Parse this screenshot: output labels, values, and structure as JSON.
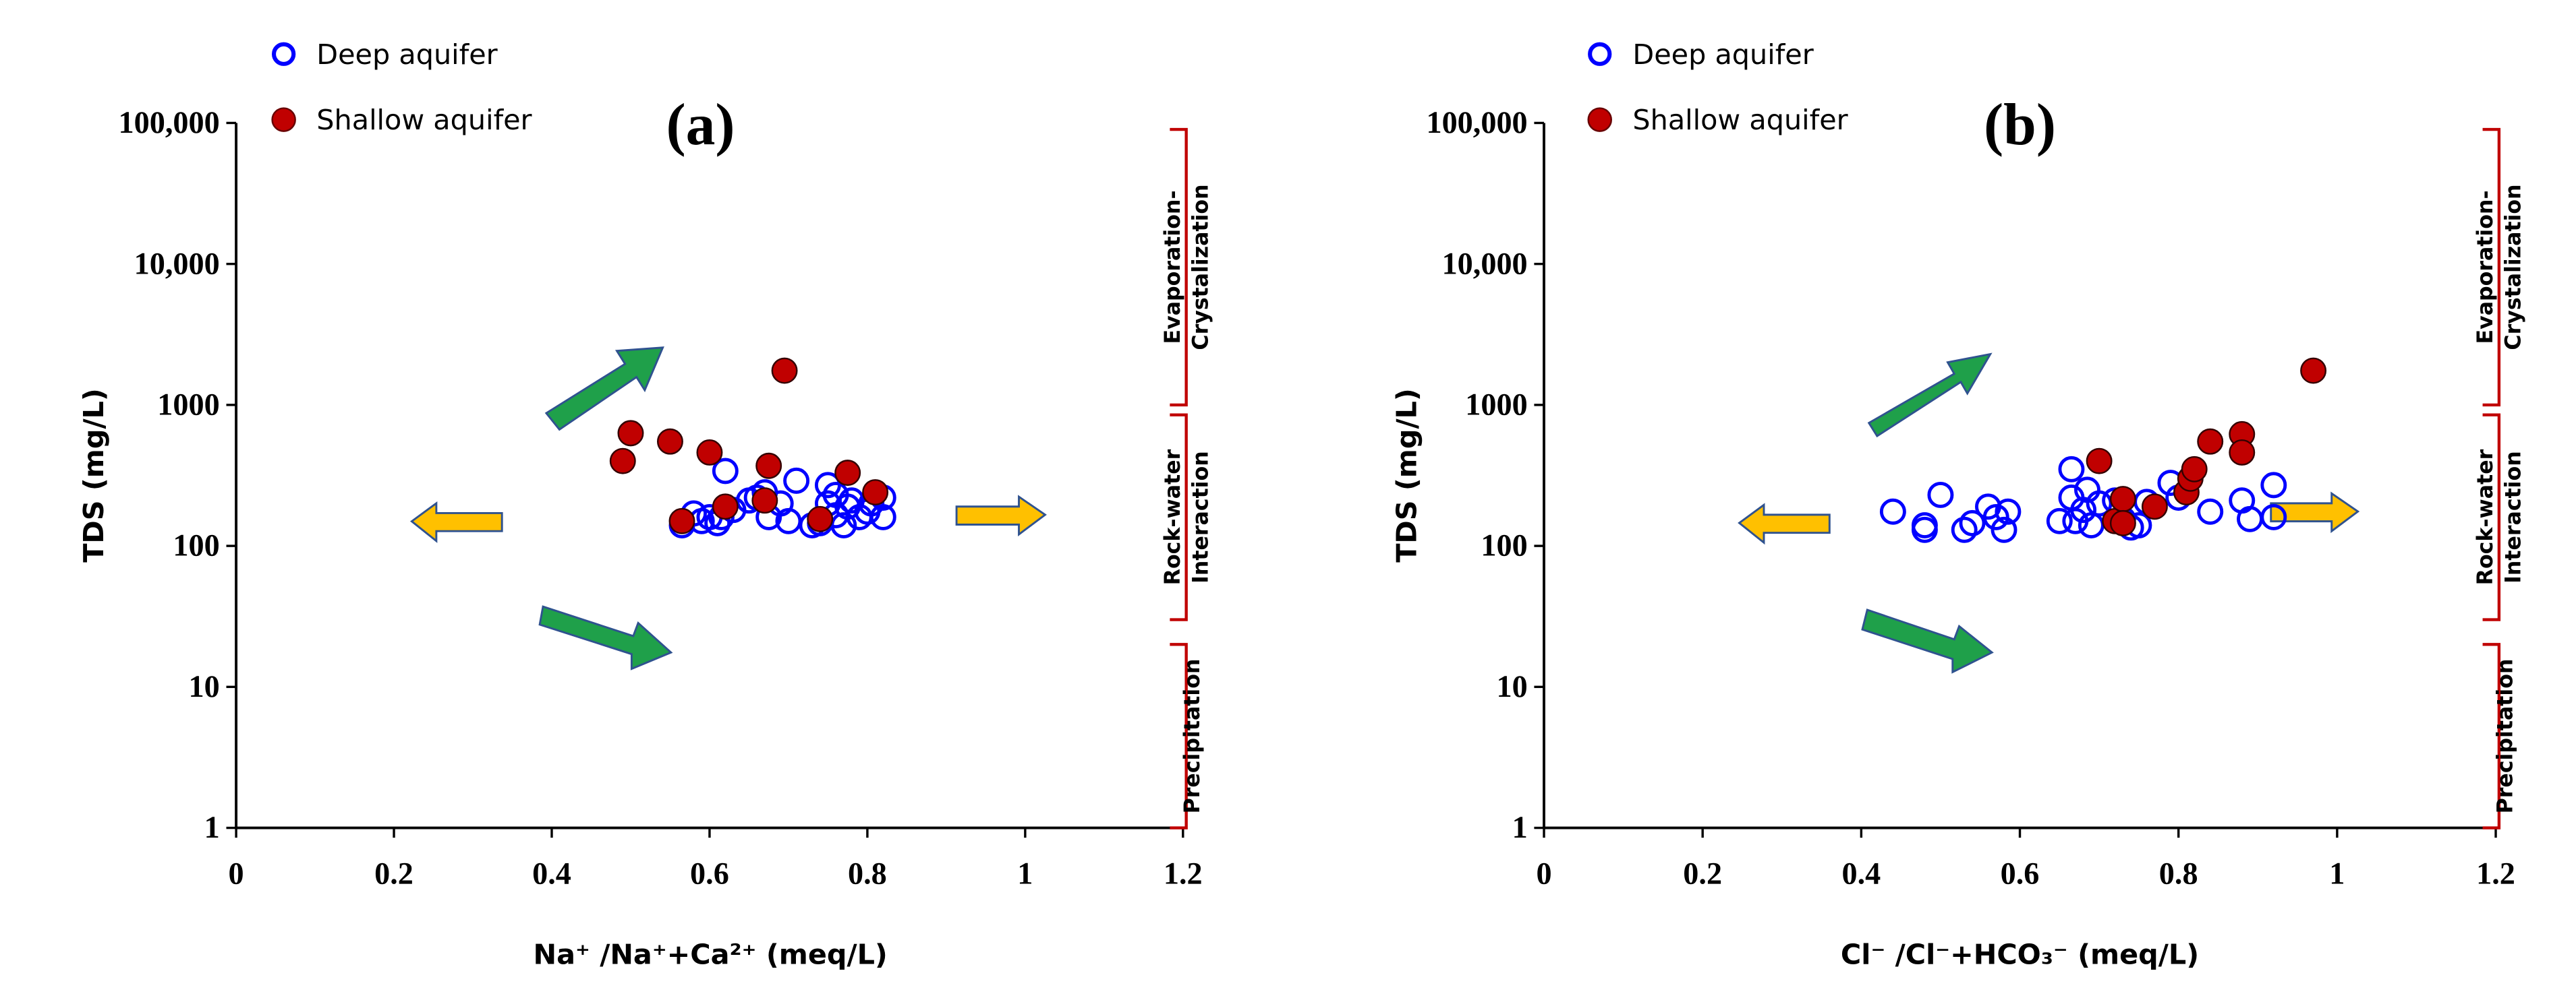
{
  "chart_data": [
    {
      "type": "scatter",
      "panel_label": "(a)",
      "xlabel": "Na⁺ /Na⁺+Ca²⁺ (meq/L)",
      "ylabel": "TDS (mg/L)",
      "xlim": [
        0,
        1.2
      ],
      "ylim": [
        1,
        100000
      ],
      "yscale": "log",
      "xticks": [
        "0",
        "0.2",
        "0.4",
        "0.6",
        "0.8",
        "1",
        "1.2"
      ],
      "yticks": [
        "1",
        "10",
        "100",
        "1000",
        "10,000",
        "100,000"
      ],
      "legend": {
        "placement": "top-left",
        "entries": [
          "Deep aquifer",
          "Shallow aquifer"
        ]
      },
      "zones": [
        {
          "label_lines": [
            "Evaporation-",
            "Crystalization"
          ],
          "range": [
            1000,
            90000
          ]
        },
        {
          "label_lines": [
            "Rock-water",
            "Interaction"
          ],
          "range": [
            30,
            850
          ]
        },
        {
          "label_lines": [
            "Precipitation"
          ],
          "range": [
            1,
            20
          ]
        }
      ],
      "series": [
        {
          "name": "Deep aquifer",
          "color": "#0000ff",
          "marker": "open-circle",
          "points": [
            [
              0.565,
              140
            ],
            [
              0.58,
              170
            ],
            [
              0.59,
              150
            ],
            [
              0.6,
              160
            ],
            [
              0.61,
              145
            ],
            [
              0.615,
              160
            ],
            [
              0.62,
              340
            ],
            [
              0.63,
              180
            ],
            [
              0.65,
              210
            ],
            [
              0.66,
              220
            ],
            [
              0.67,
              240
            ],
            [
              0.675,
              160
            ],
            [
              0.69,
              200
            ],
            [
              0.7,
              150
            ],
            [
              0.71,
              290
            ],
            [
              0.73,
              140
            ],
            [
              0.74,
              145
            ],
            [
              0.75,
              200
            ],
            [
              0.75,
              270
            ],
            [
              0.76,
              230
            ],
            [
              0.76,
              165
            ],
            [
              0.77,
              140
            ],
            [
              0.775,
              190
            ],
            [
              0.78,
              210
            ],
            [
              0.79,
              160
            ],
            [
              0.8,
              175
            ],
            [
              0.805,
              200
            ],
            [
              0.82,
              220
            ],
            [
              0.82,
              160
            ]
          ]
        },
        {
          "name": "Shallow aquifer",
          "color": "#c00000",
          "marker": "filled-circle",
          "points": [
            [
              0.49,
              400
            ],
            [
              0.5,
              630
            ],
            [
              0.55,
              550
            ],
            [
              0.6,
              460
            ],
            [
              0.62,
              190
            ],
            [
              0.565,
              150
            ],
            [
              0.67,
              210
            ],
            [
              0.675,
              370
            ],
            [
              0.695,
              1750
            ],
            [
              0.74,
              155
            ],
            [
              0.775,
              330
            ],
            [
              0.81,
              240
            ]
          ]
        }
      ]
    },
    {
      "type": "scatter",
      "panel_label": "(b)",
      "xlabel": "Cl⁻ /Cl⁻+HCO₃⁻ (meq/L)",
      "ylabel": "TDS (mg/L)",
      "xlim": [
        0,
        1.2
      ],
      "ylim": [
        1,
        100000
      ],
      "yscale": "log",
      "xticks": [
        "0",
        "0.2",
        "0.4",
        "0.6",
        "0.8",
        "1",
        "1.2"
      ],
      "yticks": [
        "1",
        "10",
        "100",
        "1000",
        "10,000",
        "100,000"
      ],
      "legend": {
        "placement": "top-left",
        "entries": [
          "Deep aquifer",
          "Shallow aquifer"
        ]
      },
      "zones": [
        {
          "label_lines": [
            "Evaporation-",
            "Crystalization"
          ],
          "range": [
            1000,
            90000
          ]
        },
        {
          "label_lines": [
            "Rock-water",
            "Interaction"
          ],
          "range": [
            30,
            850
          ]
        },
        {
          "label_lines": [
            "Precipitation"
          ],
          "range": [
            1,
            20
          ]
        }
      ],
      "series": [
        {
          "name": "Deep aquifer",
          "color": "#0000ff",
          "marker": "open-circle",
          "points": [
            [
              0.44,
              175
            ],
            [
              0.48,
              140
            ],
            [
              0.48,
              130
            ],
            [
              0.5,
              230
            ],
            [
              0.53,
              130
            ],
            [
              0.54,
              145
            ],
            [
              0.56,
              190
            ],
            [
              0.57,
              160
            ],
            [
              0.58,
              130
            ],
            [
              0.585,
              175
            ],
            [
              0.65,
              150
            ],
            [
              0.665,
              350
            ],
            [
              0.665,
              220
            ],
            [
              0.67,
              150
            ],
            [
              0.68,
              180
            ],
            [
              0.685,
              250
            ],
            [
              0.69,
              140
            ],
            [
              0.7,
              200
            ],
            [
              0.72,
              210
            ],
            [
              0.73,
              155
            ],
            [
              0.74,
              135
            ],
            [
              0.75,
              140
            ],
            [
              0.76,
              205
            ],
            [
              0.79,
              280
            ],
            [
              0.8,
              220
            ],
            [
              0.84,
              175
            ],
            [
              0.88,
              210
            ],
            [
              0.89,
              155
            ],
            [
              0.92,
              270
            ],
            [
              0.92,
              160
            ]
          ]
        },
        {
          "name": "Shallow aquifer",
          "color": "#c00000",
          "marker": "filled-circle",
          "points": [
            [
              0.7,
              400
            ],
            [
              0.72,
              150
            ],
            [
              0.73,
              215
            ],
            [
              0.73,
              145
            ],
            [
              0.77,
              190
            ],
            [
              0.81,
              240
            ],
            [
              0.815,
              300
            ],
            [
              0.82,
              350
            ],
            [
              0.84,
              550
            ],
            [
              0.88,
              620
            ],
            [
              0.88,
              460
            ],
            [
              0.97,
              1750
            ]
          ]
        }
      ]
    }
  ]
}
